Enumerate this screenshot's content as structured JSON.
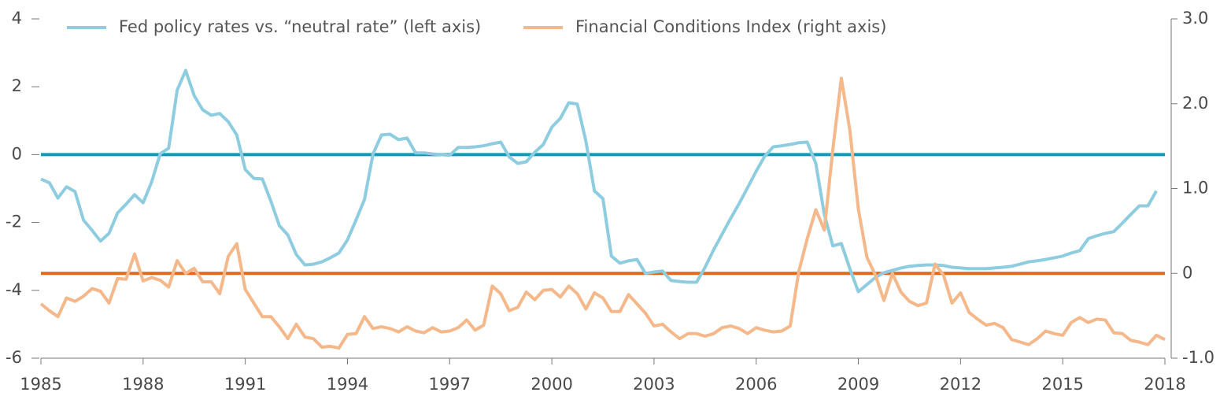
{
  "chart_data": {
    "type": "line",
    "legend": "top",
    "xlim": [
      1985,
      2018
    ],
    "xticks": [
      1985,
      1988,
      1991,
      1994,
      1997,
      2000,
      2003,
      2006,
      2009,
      2012,
      2015,
      2018
    ],
    "ylim": [
      -6,
      4
    ],
    "yticks": [
      -6,
      -4,
      -2,
      0,
      2,
      4
    ],
    "y2lim": [
      -1,
      3
    ],
    "y2ticks": [
      {
        "value": -1,
        "label": "-1.0"
      },
      0,
      {
        "value": 1,
        "label": "1.0"
      },
      {
        "value": 2,
        "label": "2.0"
      },
      {
        "value": 3,
        "label": "3.0"
      }
    ],
    "reference_lines": [
      {
        "value": 0,
        "axis": "y",
        "color": "#0f97b6"
      },
      {
        "value": 0,
        "axis": "y2",
        "color": "#e4681c"
      }
    ],
    "x": [
      1985,
      1985.25,
      1985.5,
      1985.75,
      1986,
      1986.25,
      1986.5,
      1986.75,
      1987,
      1987.25,
      1987.5,
      1987.75,
      1988,
      1988.25,
      1988.5,
      1988.75,
      1989,
      1989.25,
      1989.5,
      1989.75,
      1990,
      1990.25,
      1990.5,
      1990.75,
      1991,
      1991.25,
      1991.5,
      1991.75,
      1992,
      1992.25,
      1992.5,
      1992.75,
      1993,
      1993.25,
      1993.5,
      1993.75,
      1994,
      1994.25,
      1994.5,
      1994.75,
      1995,
      1995.25,
      1995.5,
      1995.75,
      1996,
      1996.25,
      1996.5,
      1996.75,
      1997,
      1997.25,
      1997.5,
      1997.75,
      1998,
      1998.25,
      1998.5,
      1998.75,
      1999,
      1999.25,
      1999.5,
      1999.75,
      2000,
      2000.25,
      2000.5,
      2000.75,
      2001,
      2001.25,
      2001.5,
      2001.75,
      2002,
      2002.25,
      2002.5,
      2002.75,
      2003,
      2003.25,
      2003.5,
      2003.75,
      2004,
      2004.25,
      2004.5,
      2004.75,
      2005,
      2005.25,
      2005.5,
      2005.75,
      2006,
      2006.25,
      2006.5,
      2006.75,
      2007,
      2007.25,
      2007.5,
      2007.75,
      2008,
      2008.25,
      2008.5,
      2008.75,
      2009,
      2009.25,
      2009.5,
      2009.75,
      2010,
      2010.25,
      2010.5,
      2010.75,
      2011,
      2011.25,
      2011.5,
      2011.75,
      2012,
      2012.25,
      2012.5,
      2012.75,
      2013,
      2013.25,
      2013.5,
      2013.75,
      2014,
      2014.25,
      2014.5,
      2014.75,
      2015,
      2015.25,
      2015.5,
      2015.75,
      2016,
      2016.25,
      2016.5,
      2016.75,
      2017,
      2017.25,
      2017.5,
      2017.75,
      2018
    ],
    "series": [
      {
        "name": "Fed policy rates vs. “neutral rate” (left axis)",
        "color": "#8ecde0",
        "axis": "y",
        "values": [
          -0.72,
          -0.83,
          -1.28,
          -0.95,
          -1.09,
          -1.93,
          -2.23,
          -2.55,
          -2.32,
          -1.72,
          -1.46,
          -1.18,
          -1.42,
          -0.81,
          0.02,
          0.19,
          1.9,
          2.48,
          1.74,
          1.32,
          1.16,
          1.21,
          0.97,
          0.58,
          -0.44,
          -0.7,
          -0.72,
          -1.37,
          -2.09,
          -2.37,
          -2.95,
          -3.25,
          -3.23,
          -3.16,
          -3.04,
          -2.9,
          -2.51,
          -1.93,
          -1.32,
          0.02,
          0.58,
          0.6,
          0.44,
          0.49,
          0.05,
          0.05,
          0.02,
          0,
          -0.02,
          0.21,
          0.21,
          0.23,
          0.26,
          0.32,
          0.37,
          -0.07,
          -0.26,
          -0.21,
          0.07,
          0.3,
          0.81,
          1.07,
          1.53,
          1.49,
          0.39,
          -1.07,
          -1.3,
          -2.99,
          -3.2,
          -3.13,
          -3.09,
          -3.5,
          -3.46,
          -3.43,
          -3.71,
          -3.74,
          -3.76,
          -3.76,
          -3.32,
          -2.81,
          -2.34,
          -1.88,
          -1.44,
          -0.97,
          -0.49,
          -0.05,
          0.23,
          0.26,
          0.3,
          0.35,
          0.37,
          -0.26,
          -1.76,
          -2.69,
          -2.62,
          -3.36,
          -4.04,
          -3.83,
          -3.62,
          -3.48,
          -3.41,
          -3.34,
          -3.29,
          -3.27,
          -3.25,
          -3.25,
          -3.27,
          -3.32,
          -3.34,
          -3.36,
          -3.36,
          -3.36,
          -3.34,
          -3.32,
          -3.29,
          -3.23,
          -3.16,
          -3.13,
          -3.09,
          -3.04,
          -2.99,
          -2.9,
          -2.83,
          -2.48,
          -2.39,
          -2.32,
          -2.27,
          -2.02,
          -1.76,
          -1.51,
          -1.51,
          -1.07,
          null
        ]
      },
      {
        "name": "Financial Conditions Index (right axis)",
        "color": "#f5b88a",
        "axis": "y2",
        "values": [
          -0.36,
          -0.44,
          -0.51,
          -0.29,
          -0.33,
          -0.27,
          -0.18,
          -0.21,
          -0.35,
          -0.06,
          -0.07,
          0.23,
          -0.09,
          -0.05,
          -0.08,
          -0.16,
          0.15,
          0,
          0.06,
          -0.1,
          -0.1,
          -0.24,
          0.2,
          0.35,
          -0.19,
          -0.35,
          -0.51,
          -0.51,
          -0.63,
          -0.77,
          -0.6,
          -0.75,
          -0.77,
          -0.87,
          -0.86,
          -0.88,
          -0.72,
          -0.71,
          -0.51,
          -0.65,
          -0.63,
          -0.65,
          -0.69,
          -0.63,
          -0.68,
          -0.7,
          -0.64,
          -0.69,
          -0.68,
          -0.64,
          -0.55,
          -0.67,
          -0.61,
          -0.15,
          -0.24,
          -0.44,
          -0.4,
          -0.22,
          -0.31,
          -0.2,
          -0.19,
          -0.28,
          -0.15,
          -0.24,
          -0.42,
          -0.23,
          -0.29,
          -0.45,
          -0.45,
          -0.25,
          -0.36,
          -0.47,
          -0.62,
          -0.6,
          -0.69,
          -0.77,
          -0.71,
          -0.71,
          -0.74,
          -0.71,
          -0.64,
          -0.62,
          -0.65,
          -0.71,
          -0.64,
          -0.67,
          -0.69,
          -0.68,
          -0.62,
          0.02,
          0.41,
          0.75,
          0.51,
          1.46,
          2.3,
          1.69,
          0.76,
          0.19,
          -0.02,
          -0.32,
          0,
          -0.22,
          -0.33,
          -0.38,
          -0.35,
          0.11,
          -0.02,
          -0.35,
          -0.23,
          -0.46,
          -0.54,
          -0.61,
          -0.59,
          -0.64,
          -0.78,
          -0.81,
          -0.84,
          -0.77,
          -0.68,
          -0.71,
          -0.73,
          -0.58,
          -0.52,
          -0.58,
          -0.54,
          -0.55,
          -0.7,
          -0.71,
          -0.79,
          -0.81,
          -0.84,
          -0.73,
          -0.78
        ]
      }
    ]
  }
}
